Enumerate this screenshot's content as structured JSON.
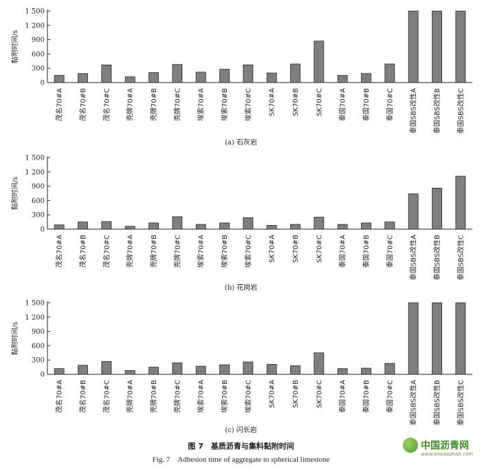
{
  "figure": {
    "title_cn": "图 7　基质沥青与集料黏附时间",
    "title_en": "Fig. 7　Adhesion time of aggregate to spherical limestone"
  },
  "watermark": {
    "text": "中国沥青网",
    "url": "www.sinoasphalt.com"
  },
  "chart_data": [
    {
      "type": "bar",
      "caption": "(a) 石灰岩",
      "ylabel": "黏附时间/s",
      "ylim": [
        0,
        1500
      ],
      "yticks": [
        0,
        300,
        600,
        900,
        1200,
        1500
      ],
      "ytick_labels": [
        "0",
        "300",
        "600",
        "900",
        "1 200",
        "1 500"
      ],
      "categories": [
        "茂名70#A",
        "茂名70#B",
        "茂名70#C",
        "壳牌70#A",
        "壳牌70#B",
        "壳牌70#C",
        "埃索70#A",
        "埃索70#B",
        "埃索70#C",
        "SK70#A",
        "SK70#B",
        "SK70#C",
        "泰国70#A",
        "泰国70#B",
        "泰国70#C",
        "泰国SBS改性A",
        "泰国SBS改性B",
        "泰国SBS改性C"
      ],
      "values": [
        150,
        190,
        370,
        120,
        210,
        380,
        220,
        280,
        370,
        200,
        390,
        870,
        150,
        190,
        390,
        1500,
        1500,
        1500
      ],
      "bar_color": "#7f7f7f",
      "grid": false
    },
    {
      "type": "bar",
      "caption": "(b) 花岗岩",
      "ylabel": "黏附时间/s",
      "ylim": [
        0,
        1500
      ],
      "yticks": [
        0,
        300,
        600,
        900,
        1200,
        1500
      ],
      "ytick_labels": [
        "0",
        "300",
        "600",
        "900",
        "1 200",
        "1 500"
      ],
      "categories": [
        "茂名70#A",
        "茂名70#B",
        "茂名70#C",
        "壳牌70#A",
        "壳牌70#B",
        "壳牌70#C",
        "埃索70#A",
        "埃索70#B",
        "埃索70#C",
        "SK70#A",
        "SK70#B",
        "SK70#C",
        "泰国70#A",
        "泰国70#B",
        "泰国70#C",
        "泰国SBS改性A",
        "泰国SBS改性B",
        "泰国SBS改性C"
      ],
      "values": [
        90,
        150,
        160,
        60,
        130,
        260,
        100,
        130,
        240,
        80,
        100,
        250,
        100,
        130,
        150,
        740,
        860,
        1110
      ],
      "bar_color": "#7f7f7f",
      "grid": false
    },
    {
      "type": "bar",
      "caption": "(c) 闪长岩",
      "ylabel": "黏附时间/s",
      "ylim": [
        0,
        1500
      ],
      "yticks": [
        0,
        300,
        600,
        900,
        1200,
        1500
      ],
      "ytick_labels": [
        "0",
        "300",
        "600",
        "900",
        "1 200",
        "1 500"
      ],
      "categories": [
        "茂名70#A",
        "茂名70#B",
        "茂名70#C",
        "壳牌70#A",
        "壳牌70#B",
        "壳牌70#C",
        "埃索70#A",
        "埃索70#B",
        "埃索70#C",
        "SK70#A",
        "SK70#B",
        "SK70#C",
        "泰国70#A",
        "泰国70#B",
        "泰国70#C",
        "泰国SBS改性A",
        "泰国SBS改性B",
        "泰国SBS改性C"
      ],
      "values": [
        120,
        190,
        270,
        80,
        150,
        240,
        170,
        200,
        260,
        210,
        180,
        450,
        120,
        130,
        230,
        1500,
        1500,
        1500
      ],
      "bar_color": "#7f7f7f",
      "grid": false
    }
  ]
}
